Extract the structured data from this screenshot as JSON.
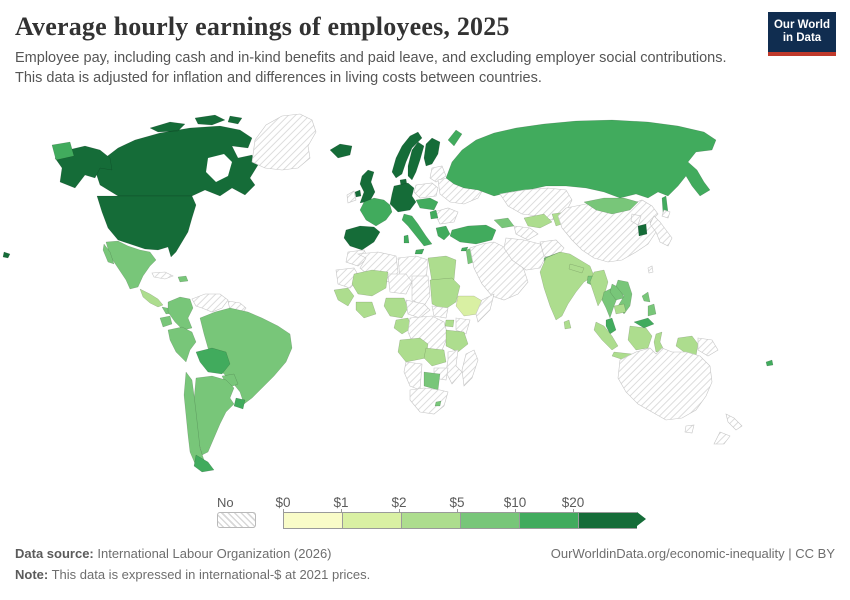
{
  "header": {
    "title": "Average hourly earnings of employees, 2025",
    "subtitle_line1": "Employee pay, including cash and in-kind benefits and paid leave, and excluding employer social contributions.",
    "subtitle_line2": "This data is adjusted for inflation and differences in living costs between countries.",
    "logo_line1": "Our World",
    "logo_line2": "in Data",
    "logo_bg": "#102d50",
    "logo_accent": "#c0392b"
  },
  "legend": {
    "no_data_label": "No data",
    "tick_labels": [
      "$0",
      "$1",
      "$2",
      "$5",
      "$10",
      "$20"
    ],
    "colors": [
      "#f9fcc8",
      "#d9f0a3",
      "#addd8e",
      "#78c679",
      "#41ab5d",
      "#156c38"
    ]
  },
  "footer": {
    "source_label": "Data source:",
    "source_value": " International Labour Organization (2026)",
    "note_label": "Note:",
    "note_value": " This data is expressed in international-$ at 2021 prices.",
    "right_text": "OurWorldinData.org/economic-inequality | CC BY"
  },
  "chart_data": {
    "type": "choropleth-map",
    "title": "Average hourly earnings of employees, 2025",
    "unit": "international-$ at 2021 prices, per hour",
    "bins": [
      "$0-$1",
      "$1-$2",
      "$2-$5",
      "$5-$10",
      "$10-$20",
      "$20+"
    ],
    "legend_position": "bottom",
    "no_data_style": "diagonal-hatch",
    "regions": [
      {
        "name": "canada",
        "bin": 5
      },
      {
        "name": "hudson-bay",
        "bin": "water"
      },
      {
        "name": "alaska",
        "bin": 5
      },
      {
        "name": "chukotka-wrap",
        "bin": 4
      },
      {
        "name": "greenland",
        "bin": "nodata"
      },
      {
        "name": "usa",
        "bin": 5
      },
      {
        "name": "hawaii",
        "bin": 5
      },
      {
        "name": "mexico",
        "bin": 3
      },
      {
        "name": "baja",
        "bin": 3
      },
      {
        "name": "central-america",
        "bin": 2
      },
      {
        "name": "panama",
        "bin": 3
      },
      {
        "name": "cuba",
        "bin": "nodata"
      },
      {
        "name": "hispaniola",
        "bin": 3
      },
      {
        "name": "colombia",
        "bin": 3
      },
      {
        "name": "venezuela",
        "bin": "nodata"
      },
      {
        "name": "guyanas",
        "bin": "nodata"
      },
      {
        "name": "ecuador",
        "bin": 3
      },
      {
        "name": "peru",
        "bin": 3
      },
      {
        "name": "brazil",
        "bin": 3
      },
      {
        "name": "bolivia",
        "bin": 4
      },
      {
        "name": "paraguay",
        "bin": 3
      },
      {
        "name": "argentina",
        "bin": 3
      },
      {
        "name": "chile",
        "bin": 3
      },
      {
        "name": "chile-south",
        "bin": 4
      },
      {
        "name": "uruguay",
        "bin": 4
      },
      {
        "name": "iceland",
        "bin": 5
      },
      {
        "name": "uk",
        "bin": 5
      },
      {
        "name": "n-ireland",
        "bin": 5
      },
      {
        "name": "ireland",
        "bin": "nodata"
      },
      {
        "name": "norway",
        "bin": 5
      },
      {
        "name": "sweden",
        "bin": 5
      },
      {
        "name": "finland",
        "bin": 5
      },
      {
        "name": "denmark",
        "bin": 5
      },
      {
        "name": "baltics",
        "bin": "nodata"
      },
      {
        "name": "poland",
        "bin": "nodata"
      },
      {
        "name": "germany-group",
        "bin": 5
      },
      {
        "name": "france",
        "bin": 4
      },
      {
        "name": "iberia",
        "bin": 5
      },
      {
        "name": "italy",
        "bin": 4
      },
      {
        "name": "sicily",
        "bin": 4
      },
      {
        "name": "sardinia",
        "bin": 4
      },
      {
        "name": "czech-hungary",
        "bin": 4
      },
      {
        "name": "ukraine-belarus",
        "bin": "nodata"
      },
      {
        "name": "romania-bulgaria",
        "bin": "nodata"
      },
      {
        "name": "serbia",
        "bin": 4
      },
      {
        "name": "greece",
        "bin": 4
      },
      {
        "name": "russia",
        "bin": 4
      },
      {
        "name": "novaya-zemlya",
        "bin": 4
      },
      {
        "name": "sakhalin",
        "bin": 4
      },
      {
        "name": "kazakhstan",
        "bin": "nodata"
      },
      {
        "name": "uzbekistan",
        "bin": 2
      },
      {
        "name": "turkmenistan",
        "bin": "nodata"
      },
      {
        "name": "kyrgyz-tajik",
        "bin": 2
      },
      {
        "name": "caucasus",
        "bin": 3
      },
      {
        "name": "turkey",
        "bin": 4
      },
      {
        "name": "cyprus",
        "bin": 4
      },
      {
        "name": "levant",
        "bin": 3
      },
      {
        "name": "arabia",
        "bin": "nodata"
      },
      {
        "name": "iran",
        "bin": "nodata"
      },
      {
        "name": "afghanistan",
        "bin": "nodata"
      },
      {
        "name": "pakistan",
        "bin": 3
      },
      {
        "name": "morocco",
        "bin": "nodata"
      },
      {
        "name": "algeria",
        "bin": "nodata"
      },
      {
        "name": "libya",
        "bin": "nodata"
      },
      {
        "name": "egypt",
        "bin": 2
      },
      {
        "name": "mauritania",
        "bin": "nodata"
      },
      {
        "name": "mali",
        "bin": 2
      },
      {
        "name": "niger",
        "bin": "nodata"
      },
      {
        "name": "chad",
        "bin": "nodata"
      },
      {
        "name": "sudan",
        "bin": 2
      },
      {
        "name": "south-sudan",
        "bin": "nodata"
      },
      {
        "name": "ethiopia",
        "bin": 1
      },
      {
        "name": "somalia",
        "bin": "nodata"
      },
      {
        "name": "senegal-guinea",
        "bin": 2
      },
      {
        "name": "ivory-ghana",
        "bin": 2
      },
      {
        "name": "nigeria",
        "bin": 2
      },
      {
        "name": "cameroon-car",
        "bin": "nodata"
      },
      {
        "name": "gabon-congo",
        "bin": 2
      },
      {
        "name": "drc",
        "bin": "nodata"
      },
      {
        "name": "uganda",
        "bin": 2
      },
      {
        "name": "kenya",
        "bin": "nodata"
      },
      {
        "name": "tanzania",
        "bin": 2
      },
      {
        "name": "angola",
        "bin": 2
      },
      {
        "name": "zambia",
        "bin": 2
      },
      {
        "name": "mozambique",
        "bin": "nodata"
      },
      {
        "name": "zimbabwe",
        "bin": "nodata"
      },
      {
        "name": "botswana",
        "bin": 3
      },
      {
        "name": "namibia",
        "bin": "nodata"
      },
      {
        "name": "south-africa",
        "bin": "nodata"
      },
      {
        "name": "lesotho",
        "bin": 3
      },
      {
        "name": "madagascar",
        "bin": "nodata"
      },
      {
        "name": "china",
        "bin": "nodata"
      },
      {
        "name": "mongolia",
        "bin": 3
      },
      {
        "name": "north-korea",
        "bin": "nodata"
      },
      {
        "name": "south-korea",
        "bin": 5
      },
      {
        "name": "japan",
        "bin": "nodata"
      },
      {
        "name": "hokkaido",
        "bin": "nodata"
      },
      {
        "name": "india",
        "bin": 2
      },
      {
        "name": "nepal",
        "bin": 2
      },
      {
        "name": "bangladesh",
        "bin": 3
      },
      {
        "name": "sri-lanka",
        "bin": 2
      },
      {
        "name": "myanmar",
        "bin": 2
      },
      {
        "name": "thailand",
        "bin": 3
      },
      {
        "name": "laos",
        "bin": 3
      },
      {
        "name": "vietnam",
        "bin": 3
      },
      {
        "name": "cambodia",
        "bin": 2
      },
      {
        "name": "malaysia-peninsular",
        "bin": 4
      },
      {
        "name": "borneo-north",
        "bin": 4
      },
      {
        "name": "indonesia-sumatra",
        "bin": 2
      },
      {
        "name": "indonesia-java",
        "bin": 2
      },
      {
        "name": "indonesia-kalimantan",
        "bin": 2
      },
      {
        "name": "indonesia-sulawesi",
        "bin": 2
      },
      {
        "name": "indonesia-papua",
        "bin": 2
      },
      {
        "name": "papua-new-guinea",
        "bin": "nodata"
      },
      {
        "name": "philippines-north",
        "bin": 3
      },
      {
        "name": "philippines-south",
        "bin": 3
      },
      {
        "name": "taiwan",
        "bin": "nodata"
      },
      {
        "name": "australia",
        "bin": "nodata"
      },
      {
        "name": "tasmania",
        "bin": "nodata"
      },
      {
        "name": "new-zealand-north",
        "bin": "nodata"
      },
      {
        "name": "new-zealand-south",
        "bin": "nodata"
      },
      {
        "name": "fiji",
        "bin": 4
      }
    ]
  }
}
